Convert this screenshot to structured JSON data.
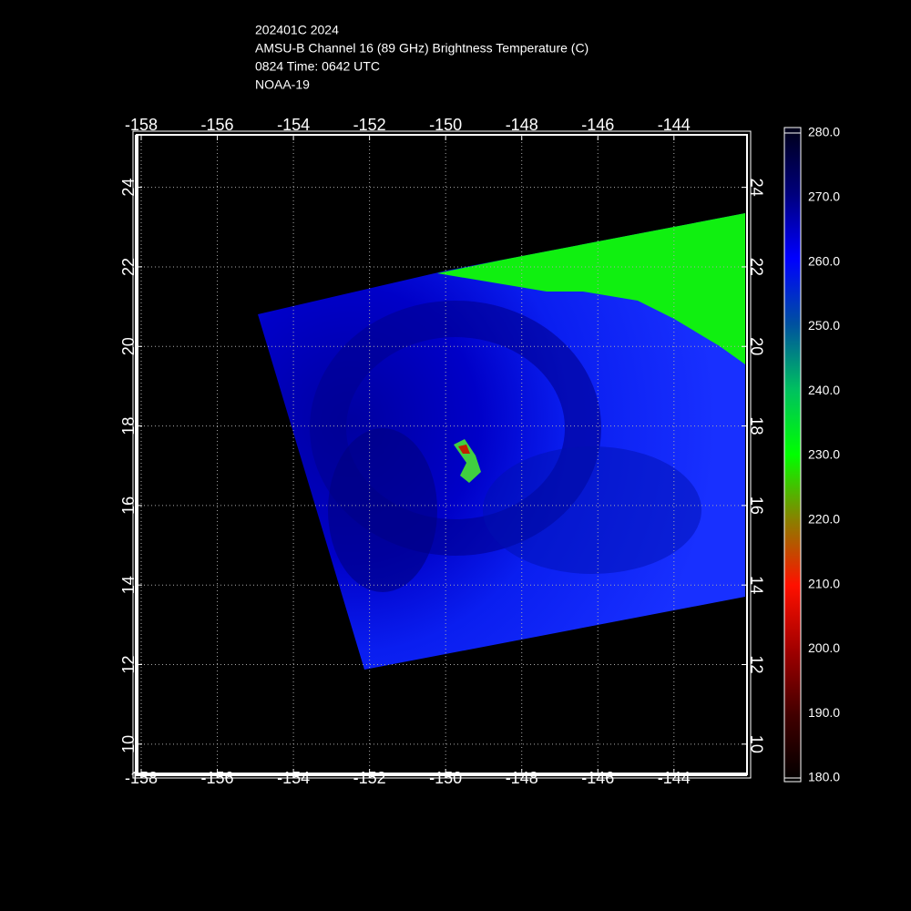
{
  "header": {
    "lines": [
      "202401C 2024",
      "AMSU-B Channel 16 (89 GHz) Brightness Temperature (C)",
      "0824 Time: 0642 UTC",
      "NOAA-19"
    ]
  },
  "map": {
    "xlim": [
      -158.12,
      -142.08
    ],
    "ylim": [
      9.24,
      25.32
    ],
    "xticks": [
      -158,
      -156,
      -154,
      -152,
      -150,
      -148,
      -146,
      -144
    ],
    "yticks": [
      10,
      12,
      14,
      16,
      18,
      20,
      22,
      24
    ],
    "grid": true
  },
  "colorbar": {
    "lim": [
      180,
      280
    ],
    "ticks": [
      {
        "value": 280,
        "label": "280.0"
      },
      {
        "value": 270,
        "label": "270.0"
      },
      {
        "value": 260,
        "label": "260.0"
      },
      {
        "value": 250,
        "label": "250.0"
      },
      {
        "value": 240,
        "label": "240.0"
      },
      {
        "value": 230,
        "label": "230.0"
      },
      {
        "value": 220,
        "label": "220.0"
      },
      {
        "value": 210,
        "label": "210.0"
      },
      {
        "value": 200,
        "label": "200.0"
      },
      {
        "value": 190,
        "label": "190.0"
      },
      {
        "value": 180,
        "label": "180.0"
      }
    ]
  }
}
